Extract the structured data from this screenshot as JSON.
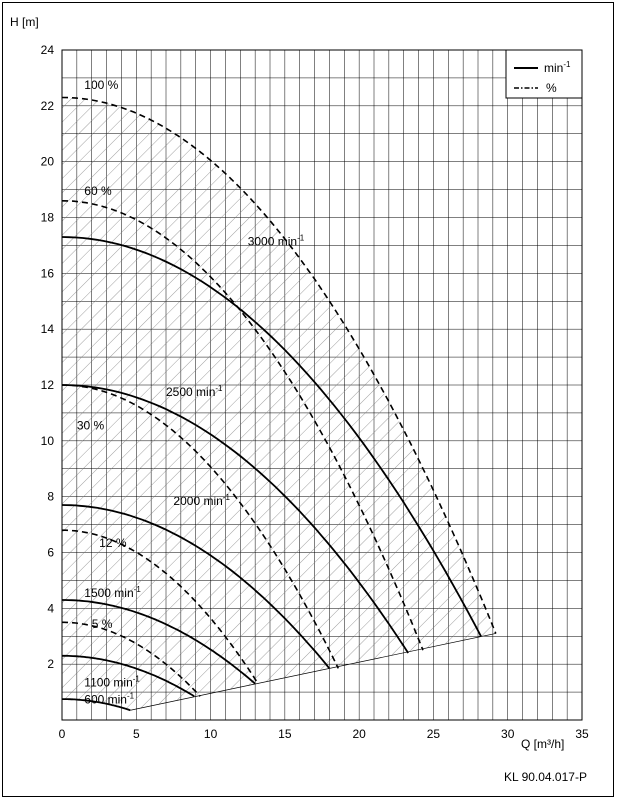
{
  "chart_data": {
    "type": "line",
    "ylabel": "H [m]",
    "xlabel": "Q [m³/h]",
    "reference": "KL 90.04.017-P",
    "xlim": [
      0,
      35
    ],
    "ylim": [
      0,
      24
    ],
    "x_ticks": [
      0,
      5,
      10,
      15,
      20,
      25,
      30,
      35
    ],
    "y_ticks": [
      2,
      4,
      6,
      8,
      10,
      12,
      14,
      16,
      18,
      20,
      22,
      24
    ],
    "grid": true,
    "legend_position": "top-right",
    "legend": [
      {
        "label": "min",
        "sup": "-1",
        "style": "solid"
      },
      {
        "label": "%",
        "sup": "",
        "style": "dashdot"
      }
    ],
    "speed_curves": [
      {
        "label": "3000 min",
        "sup": "-1",
        "h0": 17.3,
        "qmax": 28.2,
        "hend": 3.0
      },
      {
        "label": "2500 min",
        "sup": "-1",
        "h0": 12.0,
        "qmax": 23.3,
        "hend": 2.4
      },
      {
        "label": "2000 min",
        "sup": "-1",
        "h0": 7.7,
        "qmax": 18.0,
        "hend": 1.85
      },
      {
        "label": "1500 min",
        "sup": "-1",
        "h0": 4.3,
        "qmax": 13.0,
        "hend": 1.3
      },
      {
        "label": "1100 min",
        "sup": "-1",
        "h0": 2.3,
        "qmax": 8.9,
        "hend": 0.85
      },
      {
        "label": "600 min",
        "sup": "-1",
        "h0": 0.75,
        "qmax": 4.6,
        "hend": 0.35
      }
    ],
    "percent_curves": [
      {
        "label": "100 %",
        "h0": 22.3,
        "qmax": 29.2,
        "hend": 3.1
      },
      {
        "label": "60 %",
        "h0": 18.6,
        "qmax": 24.3,
        "hend": 2.5
      },
      {
        "label": "30 %",
        "h0": 12.0,
        "qmax": 18.6,
        "hend": 1.85
      },
      {
        "label": "12 %",
        "h0": 6.8,
        "qmax": 13.2,
        "hend": 1.3
      },
      {
        "label": "5 %",
        "h0": 3.5,
        "qmax": 9.3,
        "hend": 0.85
      }
    ],
    "min_boundary": [
      [
        4.6,
        0.35
      ],
      [
        29.2,
        3.1
      ]
    ]
  }
}
